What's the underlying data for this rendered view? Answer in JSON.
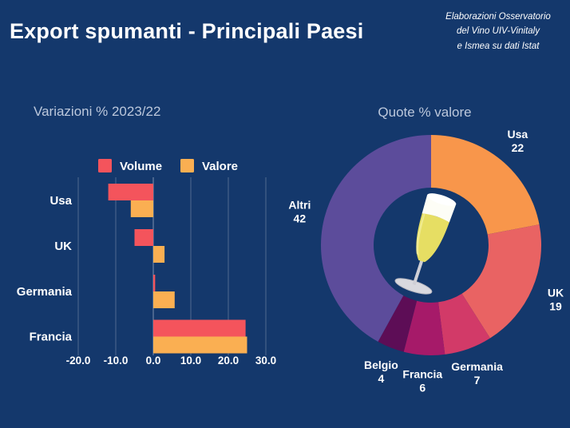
{
  "page_title": "Export spumanti - Principali Paesi",
  "credit": {
    "line1": "Elaborazioni Osservatorio",
    "line2": "del Vino UIV-Vinitaly",
    "line3": "e Ismea su dati Istat"
  },
  "colors": {
    "background": "#14386C",
    "title_text": "#FFFFFF",
    "section_title_text": "#BCC8DC",
    "axis_text": "#FFFFFF",
    "gridline": "rgba(255,255,255,0.25)",
    "zero_line": "rgba(255,255,255,0.45)"
  },
  "chart_data": [
    {
      "type": "bar",
      "orientation": "horizontal",
      "title": "Variazioni % 2023/22",
      "categories": [
        "Usa",
        "UK",
        "Germania",
        "Francia"
      ],
      "series": [
        {
          "name": "Volume",
          "color": "#F4545C",
          "values": [
            -12.0,
            -5.0,
            0.5,
            24.6
          ]
        },
        {
          "name": "Valore",
          "color": "#FAAF52",
          "values": [
            -6.0,
            3.0,
            5.7,
            25.0
          ]
        }
      ],
      "xlim": [
        -20,
        30
      ],
      "xticks": [
        -20,
        -10,
        0,
        10,
        20,
        30
      ],
      "tick_format_decimals": 1,
      "grid": true,
      "legend_position": "top"
    },
    {
      "type": "pie",
      "donut": true,
      "title": "Quote % valore",
      "start_angle_deg": 0,
      "direction": "clockwise",
      "center_icon": "champagne-flute",
      "slices": [
        {
          "label": "Usa",
          "value": 22,
          "color": "#F8964B"
        },
        {
          "label": "UK",
          "value": 19,
          "color": "#E96363"
        },
        {
          "label": "Germania",
          "value": 7,
          "color": "#D23A68"
        },
        {
          "label": "Francia",
          "value": 6,
          "color": "#A61A69"
        },
        {
          "label": "Belgio",
          "value": 4,
          "color": "#5D0D56"
        },
        {
          "label": "Altri",
          "value": 42,
          "color": "#5C4C9B"
        }
      ]
    }
  ]
}
